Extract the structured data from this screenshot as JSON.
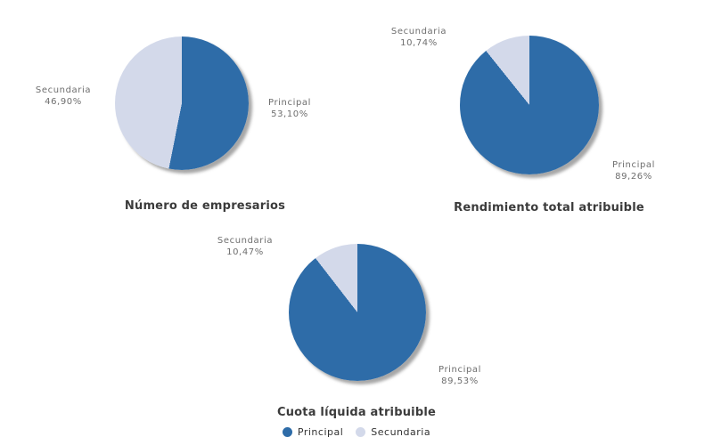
{
  "colors": {
    "principal": "#2e6ca8",
    "secundaria": "#d3d9ea",
    "label_text": "#6e6e6e",
    "title_text": "#3b3b3b"
  },
  "chart_data": [
    {
      "type": "pie",
      "title": "Número de empresarios",
      "labels": [
        "Principal",
        "Secundaria"
      ],
      "values": [
        53.1,
        46.9
      ],
      "value_labels": [
        "53,10%",
        "46,90%"
      ],
      "colors": [
        "#2e6ca8",
        "#d3d9ea"
      ],
      "start_angle_deg": 0,
      "direction": "clockwise",
      "legend_position": "none"
    },
    {
      "type": "pie",
      "title": "Rendimiento total atribuible",
      "labels": [
        "Principal",
        "Secundaria"
      ],
      "values": [
        89.26,
        10.74
      ],
      "value_labels": [
        "89,26%",
        "10,74%"
      ],
      "colors": [
        "#2e6ca8",
        "#d3d9ea"
      ],
      "start_angle_deg": 0,
      "direction": "clockwise",
      "legend_position": "none"
    },
    {
      "type": "pie",
      "title": "Cuota líquida atribuible",
      "labels": [
        "Principal",
        "Secundaria"
      ],
      "values": [
        89.53,
        10.47
      ],
      "value_labels": [
        "89,53%",
        "10,47%"
      ],
      "colors": [
        "#2e6ca8",
        "#d3d9ea"
      ],
      "start_angle_deg": 0,
      "direction": "clockwise",
      "legend_position": "bottom-center"
    }
  ],
  "legend": {
    "items": [
      {
        "label": "Principal",
        "color": "#2e6ca8"
      },
      {
        "label": "Secundaria",
        "color": "#d3d9ea"
      }
    ]
  }
}
